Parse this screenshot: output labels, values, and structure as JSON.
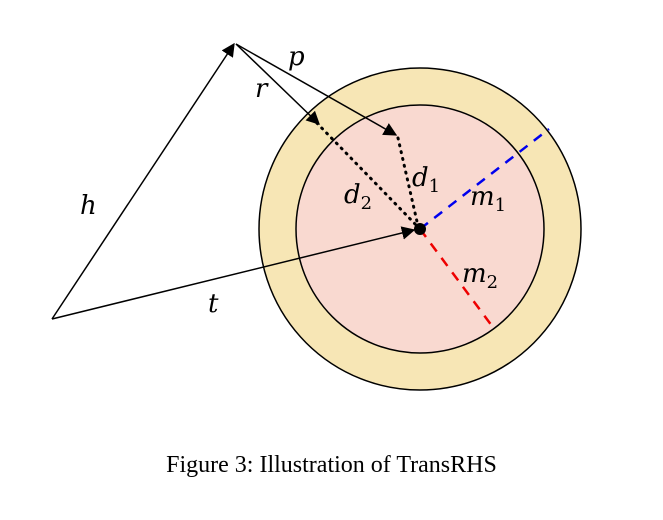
{
  "figure": {
    "labels": {
      "h": "h",
      "t": "t",
      "r": "r",
      "p": "p",
      "d1_base": "d",
      "d1_sub": "1",
      "d2_base": "d",
      "d2_sub": "2",
      "m1_base": "m",
      "m1_sub": "1",
      "m2_base": "m",
      "m2_sub": "2"
    },
    "colors": {
      "outer_ring": "#f7e6b5",
      "inner_circle": "#f9d9d0",
      "m1_line": "#0000ee",
      "m2_line": "#ee0000",
      "stroke": "#000000"
    }
  },
  "caption": "Figure 3: Illustration of TransRHS"
}
